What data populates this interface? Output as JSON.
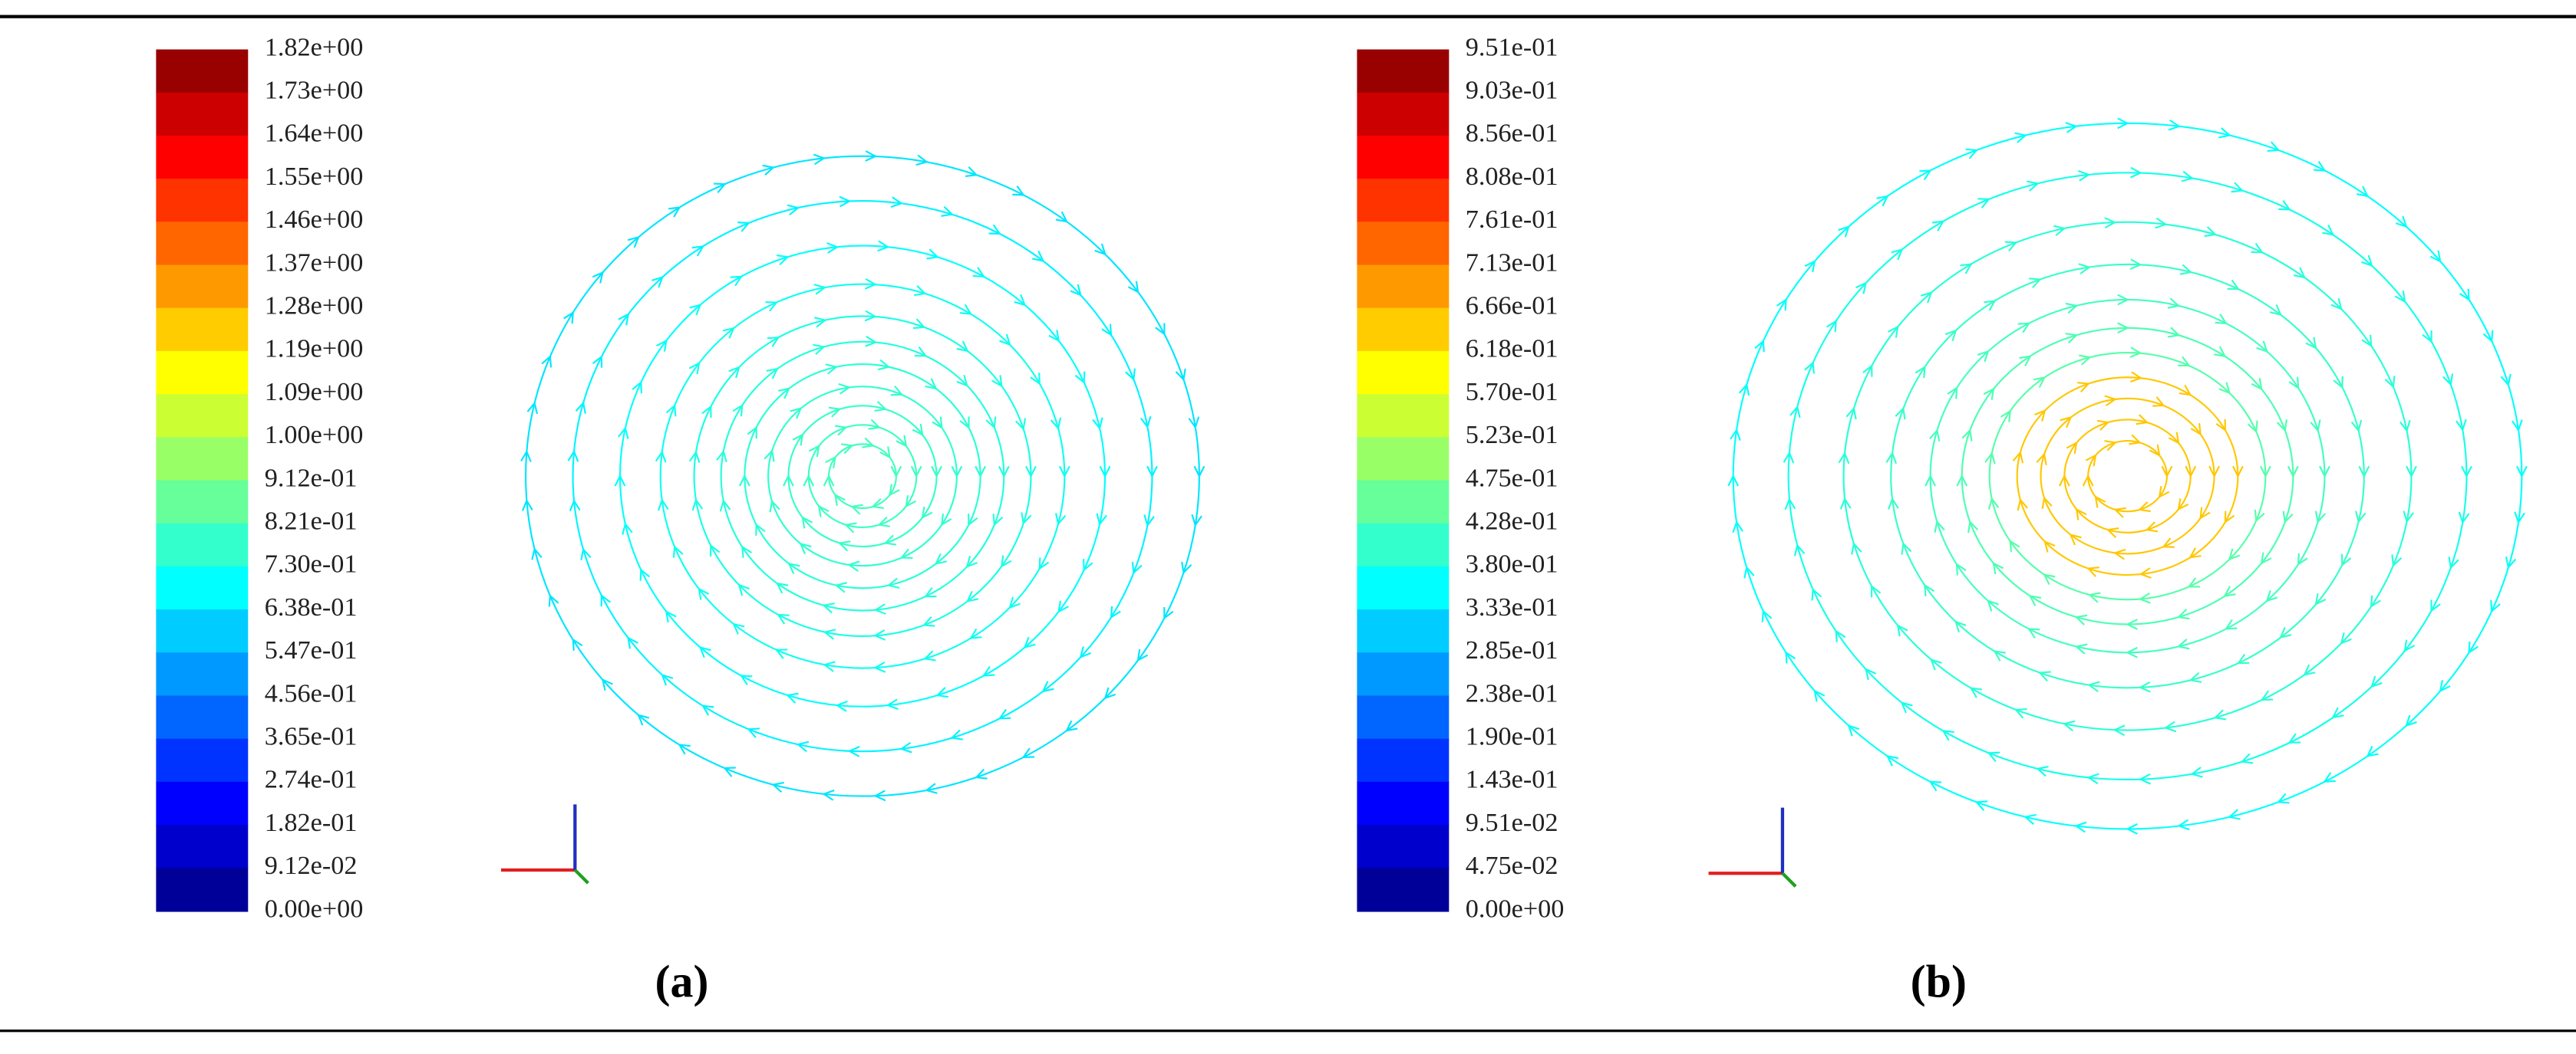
{
  "panels": [
    {
      "colorbar_labels": [
        "1.82e+00",
        "1.73e+00",
        "1.64e+00",
        "1.55e+00",
        "1.46e+00",
        "1.37e+00",
        "1.28e+00",
        "1.19e+00",
        "1.09e+00",
        "1.00e+00",
        "9.12e-01",
        "8.21e-01",
        "7.30e-01",
        "6.38e-01",
        "5.47e-01",
        "4.56e-01",
        "3.65e-01",
        "2.74e-01",
        "1.82e-01",
        "9.12e-02",
        "0.00e+00"
      ],
      "caption": "(a)"
    },
    {
      "colorbar_labels": [
        "9.51e-01",
        "9.03e-01",
        "8.56e-01",
        "8.08e-01",
        "7.61e-01",
        "7.13e-01",
        "6.66e-01",
        "6.18e-01",
        "5.70e-01",
        "5.23e-01",
        "4.75e-01",
        "4.28e-01",
        "3.80e-01",
        "3.33e-01",
        "2.85e-01",
        "2.38e-01",
        "1.90e-01",
        "1.43e-01",
        "9.51e-02",
        "4.75e-02",
        "0.00e+00"
      ],
      "caption": "(b)"
    }
  ]
}
